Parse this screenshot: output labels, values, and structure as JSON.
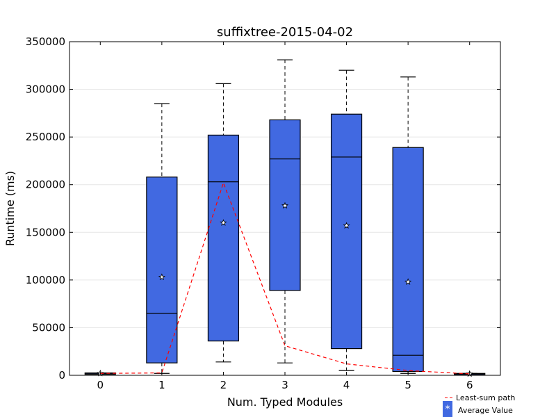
{
  "chart_data": {
    "type": "box",
    "title": "suffixtree-2015-04-02",
    "xlabel": "Num. Typed Modules",
    "ylabel": "Runtime (ms)",
    "ylim": [
      0,
      350000
    ],
    "xlim": [
      -0.5,
      6.5
    ],
    "yticks": [
      0,
      50000,
      100000,
      150000,
      200000,
      250000,
      300000,
      350000
    ],
    "ytick_labels": [
      "0",
      "50000",
      "100000",
      "150000",
      "200000",
      "250000",
      "300000",
      "350000"
    ],
    "xticks": [
      0,
      1,
      2,
      3,
      4,
      5,
      6
    ],
    "xtick_labels": [
      "0",
      "1",
      "2",
      "3",
      "4",
      "5",
      "6"
    ],
    "grid": "horizontal",
    "box_color": "#4169e1",
    "line_color": "#ff0000",
    "boxes": [
      {
        "x": 0,
        "whisker_low": 1500,
        "q1": 1500,
        "median": 2000,
        "q3": 2500,
        "whisker_high": 2500,
        "mean": 2000
      },
      {
        "x": 1,
        "whisker_low": 2000,
        "q1": 13000,
        "median": 65000,
        "q3": 208000,
        "whisker_high": 285000,
        "mean": 103000
      },
      {
        "x": 2,
        "whisker_low": 14000,
        "q1": 36000,
        "median": 203000,
        "q3": 252000,
        "whisker_high": 306000,
        "mean": 160000
      },
      {
        "x": 3,
        "whisker_low": 13000,
        "q1": 89000,
        "median": 227000,
        "q3": 268000,
        "whisker_high": 331000,
        "mean": 178000
      },
      {
        "x": 4,
        "whisker_low": 5000,
        "q1": 28000,
        "median": 229000,
        "q3": 274000,
        "whisker_high": 320000,
        "mean": 157000
      },
      {
        "x": 5,
        "whisker_low": 2000,
        "q1": 4000,
        "median": 21000,
        "q3": 239000,
        "whisker_high": 313000,
        "mean": 98000
      },
      {
        "x": 6,
        "whisker_low": 1000,
        "q1": 1000,
        "median": 1500,
        "q3": 2000,
        "whisker_high": 2000,
        "mean": 1500
      }
    ],
    "line_series": {
      "name": "Least-sum path",
      "x": [
        0,
        1,
        2,
        3,
        4,
        5,
        6
      ],
      "y": [
        2000,
        2500,
        202000,
        31000,
        12000,
        5000,
        1500
      ]
    },
    "legend": {
      "placement": "bottom-right",
      "entries": [
        "Least-sum path",
        "Average Value"
      ],
      "mean_marker_glyph": "*"
    }
  }
}
